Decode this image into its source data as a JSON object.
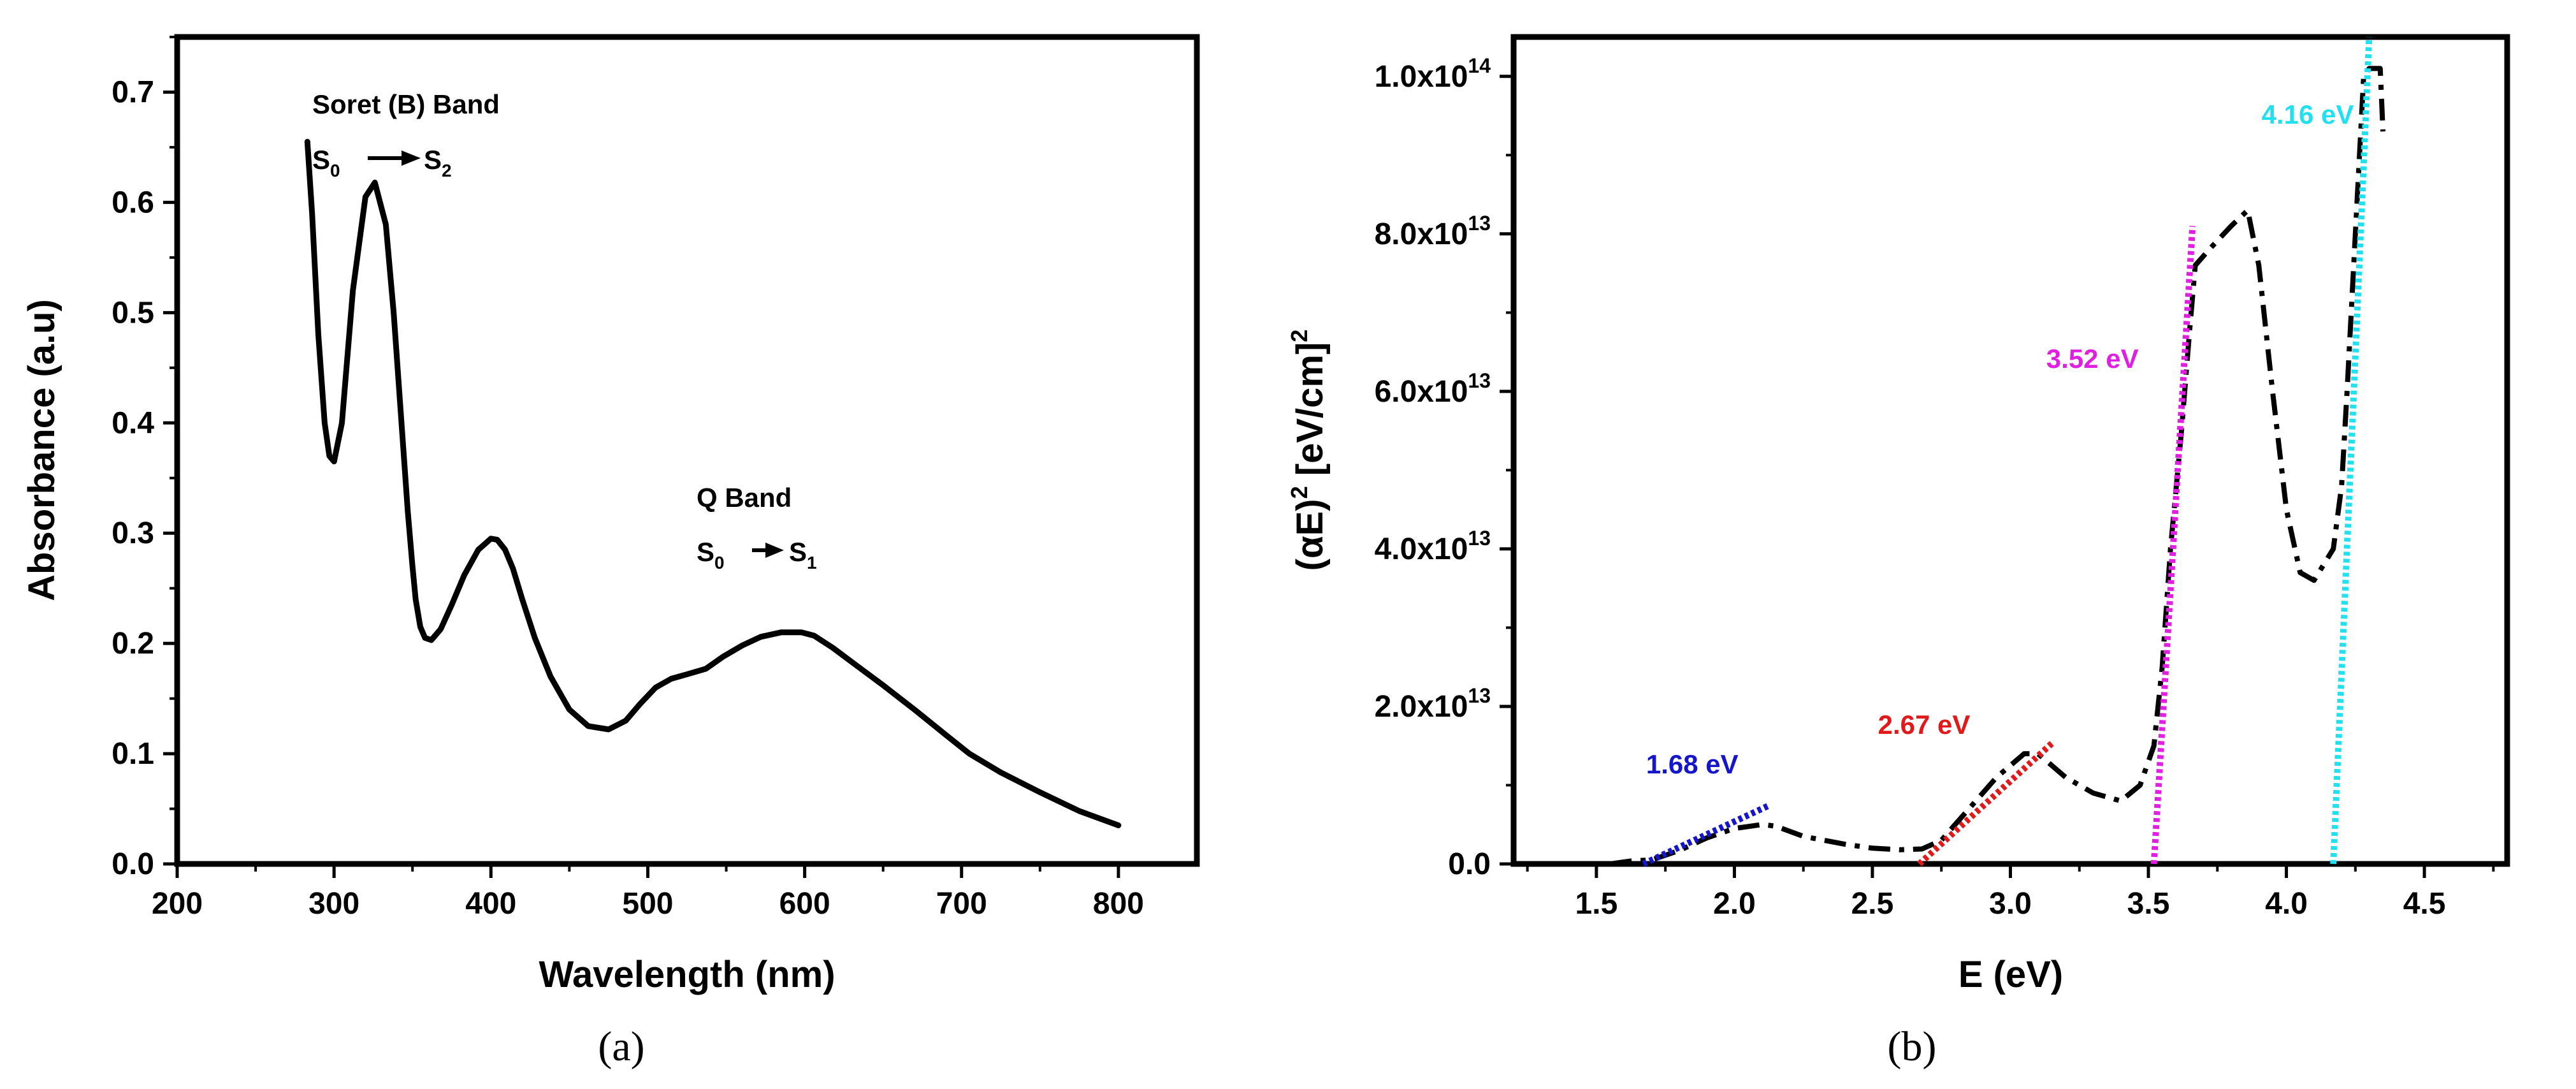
{
  "chart_data": [
    {
      "type": "line",
      "panel_label": "(a)",
      "xlabel": "Wavelength (nm)",
      "ylabel": "Absorbance (a.u)",
      "xlim": [
        200,
        850
      ],
      "ylim": [
        0,
        0.75
      ],
      "xticks": [
        200,
        300,
        400,
        500,
        600,
        700,
        800
      ],
      "yticks": [
        0.0,
        0.1,
        0.2,
        0.3,
        0.4,
        0.5,
        0.6,
        0.7
      ],
      "xtick_labels": [
        "200",
        "300",
        "400",
        "500",
        "600",
        "700",
        "800"
      ],
      "ytick_labels": [
        "0.0",
        "0.1",
        "0.2",
        "0.3",
        "0.4",
        "0.5",
        "0.6",
        "0.7"
      ],
      "series": [
        {
          "name": "absorbance",
          "color": "#000000",
          "x": [
            283,
            286,
            290,
            294,
            297,
            300,
            305,
            312,
            320,
            326,
            333,
            338,
            343,
            347,
            350,
            352,
            355,
            358,
            362,
            368,
            375,
            383,
            392,
            400,
            404,
            409,
            414,
            420,
            428,
            438,
            450,
            462,
            475,
            486,
            495,
            505,
            515,
            525,
            537,
            548,
            560,
            572,
            585,
            598,
            606,
            618,
            633,
            650,
            670,
            690,
            705,
            725,
            750,
            775,
            800
          ],
          "y": [
            0.655,
            0.59,
            0.48,
            0.4,
            0.37,
            0.365,
            0.4,
            0.52,
            0.605,
            0.618,
            0.58,
            0.5,
            0.4,
            0.32,
            0.27,
            0.24,
            0.215,
            0.205,
            0.203,
            0.213,
            0.235,
            0.262,
            0.285,
            0.295,
            0.294,
            0.285,
            0.268,
            0.24,
            0.205,
            0.17,
            0.14,
            0.125,
            0.122,
            0.13,
            0.145,
            0.16,
            0.168,
            0.172,
            0.177,
            0.188,
            0.198,
            0.206,
            0.21,
            0.21,
            0.207,
            0.196,
            0.18,
            0.162,
            0.14,
            0.117,
            0.1,
            0.083,
            0.065,
            0.048,
            0.035
          ]
        }
      ],
      "annotations": {
        "soret_title": "Soret (B) Band",
        "soret_from": "S",
        "soret_from_sub": "0",
        "soret_to": "S",
        "soret_to_sub": "2",
        "q_title": "Q Band",
        "q_from": "S",
        "q_from_sub": "0",
        "q_to": "S",
        "q_to_sub": "1"
      }
    },
    {
      "type": "line",
      "panel_label": "(b)",
      "xlabel": "E (eV)",
      "ylabel": "(αE)",
      "ylabel_sup": "2",
      "ylabel_mid": " [eV/cm]",
      "ylabel_sup2": "2",
      "xlim": [
        1.2,
        4.8
      ],
      "ylim": [
        0,
        105000000000000.0
      ],
      "xticks": [
        1.5,
        2.0,
        2.5,
        3.0,
        3.5,
        4.0,
        4.5
      ],
      "xtick_labels": [
        "1.5",
        "2.0",
        "2.5",
        "3.0",
        "3.5",
        "4.0",
        "4.5"
      ],
      "yticks": [
        0,
        20000000000000.0,
        40000000000000.0,
        60000000000000.0,
        80000000000000.0,
        100000000000000.0
      ],
      "ytick_labels": [
        {
          "base": "0.0",
          "exp": ""
        },
        {
          "base": "2.0x10",
          "exp": "13"
        },
        {
          "base": "4.0x10",
          "exp": "13"
        },
        {
          "base": "6.0x10",
          "exp": "13"
        },
        {
          "base": "8.0x10",
          "exp": "13"
        },
        {
          "base": "1.0x10",
          "exp": "14"
        }
      ],
      "series": [
        {
          "name": "(αE)^2",
          "color": "#000000",
          "style": "dash-dot",
          "x": [
            1.55,
            1.63,
            1.7,
            1.8,
            1.9,
            2.0,
            2.1,
            2.15,
            2.25,
            2.4,
            2.5,
            2.6,
            2.68,
            2.75,
            2.85,
            2.95,
            3.05,
            3.1,
            3.2,
            3.3,
            3.4,
            3.47,
            3.52,
            3.55,
            3.58,
            3.62,
            3.65,
            3.67,
            3.72,
            3.8,
            3.86,
            3.9,
            3.95,
            4.0,
            4.05,
            4.1,
            4.17,
            4.2,
            4.22,
            4.25,
            4.28,
            4.3,
            4.34,
            4.35
          ],
          "y": [
            0,
            400000000000.0,
            500000000000.0,
            1700000000000.0,
            3300000000000.0,
            4500000000000.0,
            5000000000000.0,
            4800000000000.0,
            3500000000000.0,
            2500000000000.0,
            2000000000000.0,
            1800000000000.0,
            1900000000000.0,
            3000000000000.0,
            7000000000000.0,
            11000000000000.0,
            14000000000000.0,
            14000000000000.0,
            11000000000000.0,
            9000000000000.0,
            8000000000000.0,
            10000000000000.0,
            15000000000000.0,
            25000000000000.0,
            40000000000000.0,
            55000000000000.0,
            68000000000000.0,
            76000000000000.0,
            78000000000000.0,
            81000000000000.0,
            83000000000000.0,
            76000000000000.0,
            60000000000000.0,
            45000000000000.0,
            37000000000000.0,
            36000000000000.0,
            40000000000000.0,
            48000000000000.0,
            60000000000000.0,
            80000000000000.0,
            100000000000000.0,
            101000000000000.0,
            101000000000000.0,
            93000000000000.0
          ]
        }
      ],
      "fits": [
        {
          "label": "1.68 eV",
          "color": "#1515cc",
          "x": [
            1.67,
            2.13
          ],
          "y": [
            0,
            7500000000000.0
          ],
          "label_pos": [
            1.68,
            11500000000000.0
          ]
        },
        {
          "label": "2.67 eV",
          "color": "#e01a1a",
          "x": [
            2.67,
            3.15
          ],
          "y": [
            0,
            15300000000000.0
          ],
          "label_pos": [
            2.52,
            16500000000000.0
          ]
        },
        {
          "label": "3.52 eV",
          "color": "#e020e0",
          "x": [
            3.52,
            3.66
          ],
          "y": [
            0,
            81000000000000.0
          ],
          "label_pos": [
            3.13,
            63000000000000.0
          ]
        },
        {
          "label": "4.16 eV",
          "color": "#22e0ee",
          "x": [
            4.17,
            4.3
          ],
          "y": [
            0,
            105000000000000.0
          ],
          "label_pos": [
            3.91,
            94000000000000.0
          ]
        }
      ]
    }
  ]
}
